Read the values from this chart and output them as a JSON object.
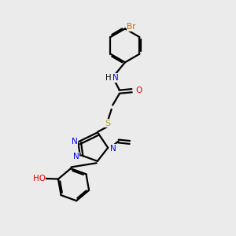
{
  "bg_color": "#ebebeb",
  "bond_color": "#000000",
  "N_color": "#0000ee",
  "O_color": "#ee0000",
  "S_color": "#aaaa00",
  "Br_color": "#cc6600",
  "line_width": 1.6,
  "fig_w": 3.0,
  "fig_h": 3.0,
  "dpi": 100,
  "xlim": [
    0,
    10
  ],
  "ylim": [
    0,
    10
  ]
}
